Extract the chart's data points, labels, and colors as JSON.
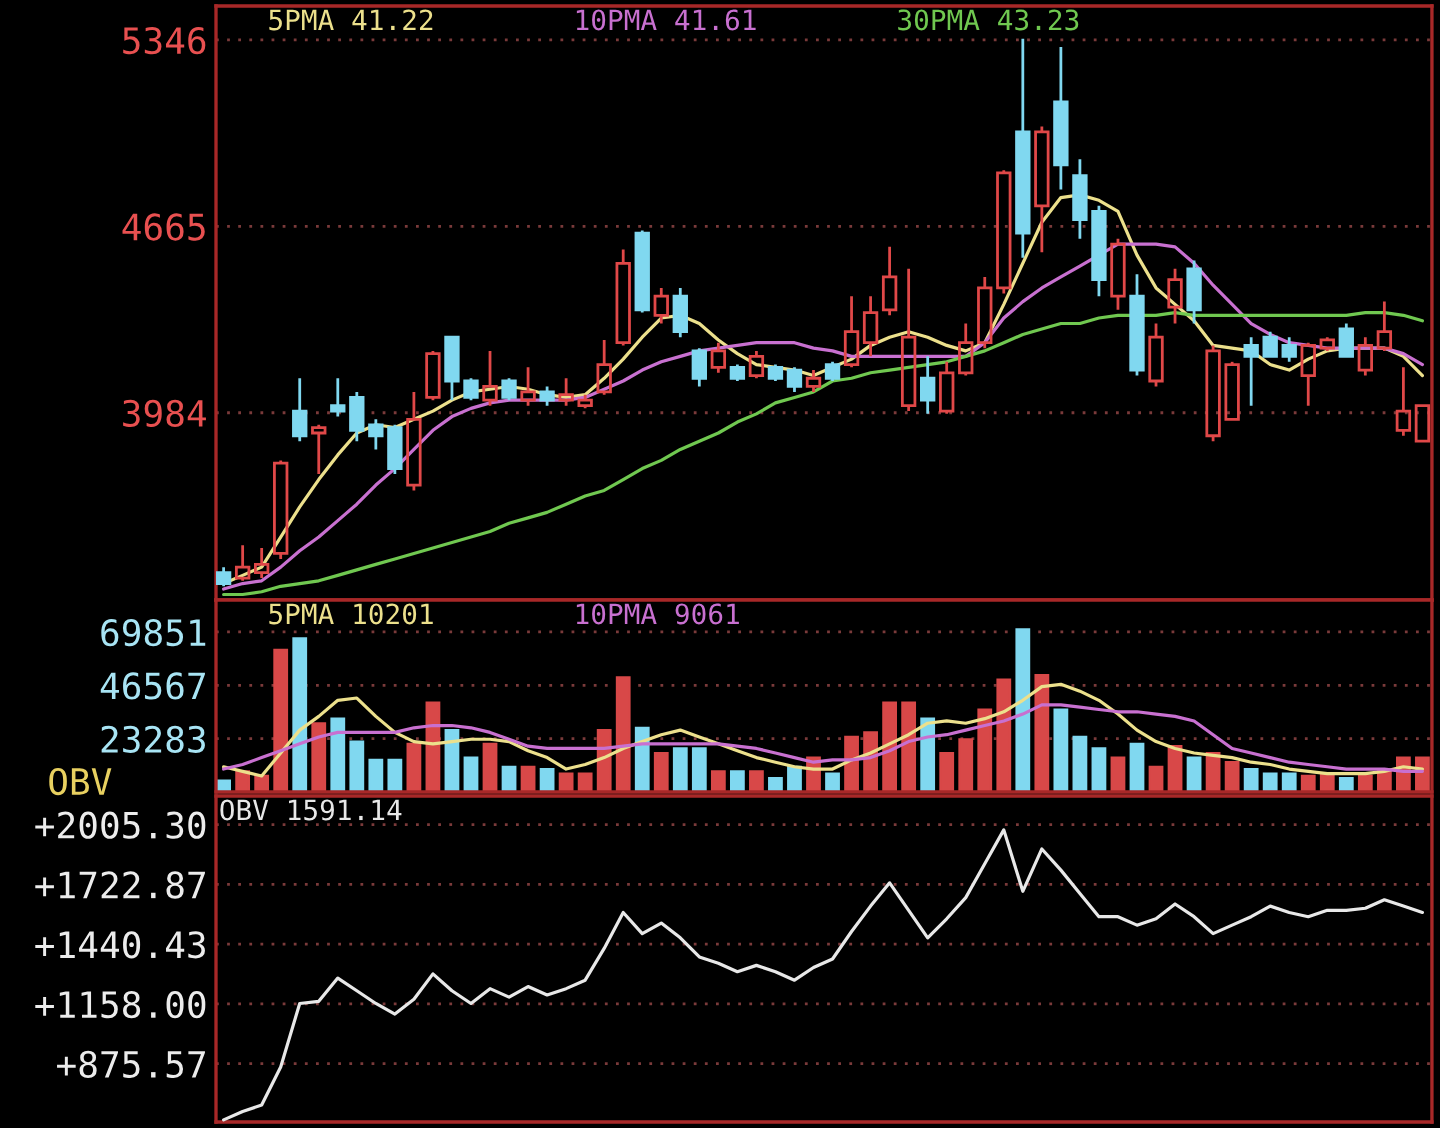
{
  "chart_data": [
    {
      "type": "candlestick",
      "categories": [
        null,
        null,
        null,
        null,
        null,
        null,
        null,
        null,
        null,
        null,
        null,
        null,
        null,
        null,
        null,
        null,
        null,
        null,
        null,
        null,
        null,
        null,
        null,
        null,
        null,
        null,
        null,
        null,
        null,
        null,
        null,
        null,
        null,
        null,
        null,
        null,
        null,
        null,
        null,
        null,
        null,
        null,
        null,
        null,
        null,
        null,
        null,
        null,
        null,
        null,
        null,
        null,
        null,
        null,
        null,
        null,
        null,
        null,
        null,
        null,
        null,
        null,
        null,
        null
      ],
      "ohlc": [
        [
          3400,
          3420,
          3350,
          3360
        ],
        [
          3380,
          3500,
          3370,
          3420
        ],
        [
          3400,
          3490,
          3380,
          3430
        ],
        [
          3470,
          3810,
          3450,
          3800
        ],
        [
          3990,
          4110,
          3880,
          3900
        ],
        [
          3910,
          3940,
          3760,
          3930
        ],
        [
          4010,
          4110,
          3970,
          3990
        ],
        [
          4040,
          4060,
          3880,
          3920
        ],
        [
          3940,
          3960,
          3850,
          3900
        ],
        [
          3930,
          3940,
          3760,
          3780
        ],
        [
          3720,
          4060,
          3700,
          3960
        ],
        [
          4040,
          4210,
          4030,
          4200
        ],
        [
          4260,
          4260,
          4030,
          4100
        ],
        [
          4100,
          4110,
          4030,
          4040
        ],
        [
          4030,
          4210,
          4010,
          4080
        ],
        [
          4100,
          4110,
          4030,
          4040
        ],
        [
          4030,
          4150,
          4010,
          4060
        ],
        [
          4060,
          4080,
          4010,
          4030
        ],
        [
          4030,
          4110,
          4010,
          4050
        ],
        [
          4010,
          4050,
          4000,
          4030
        ],
        [
          4060,
          4250,
          4050,
          4160
        ],
        [
          4240,
          4580,
          4230,
          4530
        ],
        [
          4640,
          4650,
          4350,
          4360
        ],
        [
          4340,
          4440,
          4310,
          4410
        ],
        [
          4410,
          4440,
          4260,
          4280
        ],
        [
          4210,
          4220,
          4080,
          4110
        ],
        [
          4150,
          4240,
          4130,
          4210
        ],
        [
          4150,
          4160,
          4100,
          4110
        ],
        [
          4120,
          4210,
          4110,
          4190
        ],
        [
          4150,
          4160,
          4100,
          4110
        ],
        [
          4140,
          4150,
          4060,
          4080
        ],
        [
          4080,
          4140,
          4060,
          4110
        ],
        [
          4160,
          4170,
          4100,
          4110
        ],
        [
          4160,
          4410,
          4150,
          4280
        ],
        [
          4240,
          4410,
          4190,
          4350
        ],
        [
          4360,
          4590,
          4340,
          4480
        ],
        [
          4010,
          4510,
          3990,
          4260
        ],
        [
          4110,
          4190,
          3980,
          4030
        ],
        [
          3990,
          4170,
          3980,
          4130
        ],
        [
          4130,
          4310,
          4120,
          4240
        ],
        [
          4240,
          4480,
          4220,
          4440
        ],
        [
          4440,
          4870,
          4420,
          4860
        ],
        [
          5010,
          5350,
          4550,
          4640
        ],
        [
          4740,
          5030,
          4570,
          5010
        ],
        [
          5120,
          5320,
          4800,
          4890
        ],
        [
          4850,
          4910,
          4620,
          4690
        ],
        [
          4720,
          4740,
          4410,
          4470
        ],
        [
          4410,
          4620,
          4360,
          4600
        ],
        [
          4410,
          4490,
          4120,
          4140
        ],
        [
          4100,
          4310,
          4080,
          4260
        ],
        [
          4370,
          4510,
          4310,
          4470
        ],
        [
          4510,
          4540,
          4310,
          4360
        ],
        [
          3900,
          4230,
          3880,
          4210
        ],
        [
          3960,
          4170,
          3960,
          4160
        ],
        [
          4230,
          4260,
          4010,
          4190
        ],
        [
          4260,
          4280,
          4190,
          4190
        ],
        [
          4230,
          4260,
          4170,
          4190
        ],
        [
          4120,
          4240,
          4010,
          4230
        ],
        [
          4220,
          4260,
          4210,
          4250
        ],
        [
          4290,
          4310,
          4190,
          4190
        ],
        [
          4140,
          4260,
          4120,
          4230
        ],
        [
          4220,
          4390,
          4210,
          4280
        ],
        [
          3920,
          4150,
          3900,
          3990
        ],
        [
          3880,
          4010,
          3880,
          4010
        ]
      ],
      "colors": [
        "#80d8f0",
        "#e04848",
        "#e04848",
        "#e04848",
        "#80d8f0",
        "#e04848",
        "#80d8f0",
        "#80d8f0",
        "#80d8f0",
        "#80d8f0",
        "#e04848",
        "#e04848",
        "#80d8f0",
        "#80d8f0",
        "#e04848",
        "#80d8f0",
        "#e04848",
        "#80d8f0",
        "#e04848",
        "#e04848",
        "#e04848",
        "#e04848",
        "#80d8f0",
        "#e04848",
        "#80d8f0",
        "#80d8f0",
        "#e04848",
        "#80d8f0",
        "#e04848",
        "#80d8f0",
        "#80d8f0",
        "#e04848",
        "#80d8f0",
        "#e04848",
        "#e04848",
        "#e04848",
        "#e04848",
        "#80d8f0",
        "#e04848",
        "#e04848",
        "#e04848",
        "#e04848",
        "#80d8f0",
        "#e04848",
        "#80d8f0",
        "#80d8f0",
        "#80d8f0",
        "#e04848",
        "#80d8f0",
        "#e04848",
        "#e04848",
        "#80d8f0",
        "#e04848",
        "#e04848",
        "#80d8f0",
        "#80d8f0",
        "#80d8f0",
        "#e04848",
        "#e04848",
        "#80d8f0",
        "#e04848",
        "#e04848",
        "#e04848",
        "#e04848"
      ],
      "series": [
        {
          "type": "line",
          "name": "5PMA 41.22",
          "color": "#ece08c",
          "values": [
            3360,
            3390,
            3420,
            3530,
            3640,
            3740,
            3830,
            3910,
            3940,
            3930,
            3960,
            3990,
            4030,
            4060,
            4070,
            4080,
            4070,
            4050,
            4040,
            4050,
            4110,
            4180,
            4260,
            4330,
            4340,
            4310,
            4250,
            4200,
            4160,
            4150,
            4140,
            4120,
            4150,
            4180,
            4230,
            4260,
            4280,
            4260,
            4230,
            4210,
            4240,
            4380,
            4530,
            4680,
            4770,
            4780,
            4760,
            4720,
            4560,
            4440,
            4380,
            4320,
            4230,
            4220,
            4210,
            4160,
            4140,
            4180,
            4210,
            4220,
            4220,
            4220,
            4190,
            4120
          ]
        },
        {
          "type": "line",
          "name": "10PMA 41.61",
          "color": "#c870d0",
          "values": [
            3340,
            3360,
            3370,
            3420,
            3480,
            3530,
            3590,
            3650,
            3720,
            3780,
            3850,
            3920,
            3970,
            4000,
            4020,
            4030,
            4030,
            4030,
            4030,
            4040,
            4070,
            4100,
            4140,
            4170,
            4190,
            4210,
            4220,
            4230,
            4240,
            4240,
            4240,
            4220,
            4210,
            4190,
            4190,
            4190,
            4190,
            4190,
            4190,
            4190,
            4240,
            4330,
            4390,
            4440,
            4480,
            4520,
            4560,
            4600,
            4600,
            4600,
            4590,
            4530,
            4450,
            4380,
            4310,
            4270,
            4240,
            4230,
            4220,
            4220,
            4220,
            4220,
            4200,
            4160
          ]
        },
        {
          "type": "line",
          "name": "30PMA 43.23",
          "color": "#70c850",
          "values": [
            3320,
            3320,
            3330,
            3350,
            3360,
            3370,
            3390,
            3410,
            3430,
            3450,
            3470,
            3490,
            3510,
            3530,
            3550,
            3580,
            3600,
            3620,
            3650,
            3680,
            3700,
            3740,
            3780,
            3810,
            3850,
            3880,
            3910,
            3950,
            3980,
            4020,
            4040,
            4060,
            4100,
            4110,
            4130,
            4140,
            4150,
            4160,
            4170,
            4190,
            4210,
            4240,
            4270,
            4290,
            4310,
            4310,
            4330,
            4340,
            4340,
            4340,
            4350,
            4340,
            4340,
            4340,
            4340,
            4340,
            4340,
            4340,
            4340,
            4340,
            4350,
            4350,
            4340,
            4320
          ]
        }
      ],
      "ylim": [
        3300,
        5470
      ],
      "yticks": [
        3984,
        4665,
        5346
      ],
      "grid": "y",
      "legend": "top left",
      "tick_labels": "y"
    },
    {
      "type": "bar",
      "categories": [
        null,
        null,
        null,
        null,
        null,
        null,
        null,
        null,
        null,
        null,
        null,
        null,
        null,
        null,
        null,
        null,
        null,
        null,
        null,
        null,
        null,
        null,
        null,
        null,
        null,
        null,
        null,
        null,
        null,
        null,
        null,
        null,
        null,
        null,
        null,
        null,
        null,
        null,
        null,
        null,
        null,
        null,
        null,
        null,
        null,
        null,
        null,
        null,
        null,
        null,
        null,
        null,
        null,
        null,
        null,
        null,
        null,
        null,
        null,
        null,
        null,
        null,
        null,
        null
      ],
      "series": [
        {
          "colors": [
            "#80d8f0",
            "#d84848",
            "#d84848",
            "#d84848",
            "#80d8f0",
            "#d84848",
            "#80d8f0",
            "#80d8f0",
            "#80d8f0",
            "#80d8f0",
            "#d84848",
            "#d84848",
            "#80d8f0",
            "#80d8f0",
            "#d84848",
            "#80d8f0",
            "#d84848",
            "#80d8f0",
            "#d84848",
            "#d84848",
            "#d84848",
            "#d84848",
            "#80d8f0",
            "#d84848",
            "#80d8f0",
            "#80d8f0",
            "#d84848",
            "#80d8f0",
            "#d84848",
            "#80d8f0",
            "#80d8f0",
            "#d84848",
            "#80d8f0",
            "#d84848",
            "#d84848",
            "#d84848",
            "#d84848",
            "#80d8f0",
            "#d84848",
            "#d84848",
            "#d84848",
            "#d84848",
            "#80d8f0",
            "#d84848",
            "#80d8f0",
            "#80d8f0",
            "#80d8f0",
            "#d84848",
            "#80d8f0",
            "#d84848",
            "#d84848",
            "#80d8f0",
            "#d84848",
            "#d84848",
            "#80d8f0",
            "#80d8f0",
            "#80d8f0",
            "#d84848",
            "#d84848",
            "#80d8f0",
            "#d84848",
            "#d84848",
            "#d84848",
            "#d84848"
          ],
          "values": [
            5000,
            9000,
            7000,
            62000,
            67000,
            30000,
            32000,
            22000,
            14000,
            14000,
            21000,
            39000,
            27000,
            15000,
            21000,
            11000,
            11000,
            10000,
            8000,
            8000,
            27000,
            50000,
            28000,
            17000,
            19000,
            19000,
            9000,
            9000,
            9000,
            6000,
            11000,
            15000,
            8000,
            24000,
            26000,
            39000,
            39000,
            32000,
            17000,
            23000,
            36000,
            49000,
            71000,
            51000,
            36000,
            24000,
            19000,
            15000,
            21000,
            11000,
            20000,
            15000,
            17000,
            13000,
            10000,
            8000,
            8000,
            7000,
            8000,
            6000,
            7000,
            9000,
            15000,
            15000
          ]
        },
        {
          "type": "line",
          "name": "5PMA 10201",
          "color": "#ece08c",
          "values": [
            11000,
            9000,
            7000,
            17000,
            27000,
            33000,
            40000,
            41000,
            33000,
            26000,
            22000,
            21000,
            22000,
            23000,
            23000,
            22000,
            18000,
            15000,
            10000,
            12000,
            15000,
            19000,
            22000,
            25000,
            27000,
            24000,
            21000,
            18000,
            15000,
            13000,
            11000,
            10000,
            10000,
            14000,
            17000,
            21000,
            25000,
            30000,
            31000,
            30000,
            32000,
            35000,
            40000,
            46000,
            47000,
            44000,
            40000,
            34000,
            27000,
            22000,
            19000,
            17000,
            16000,
            15000,
            13000,
            12000,
            10000,
            9000,
            8000,
            8000,
            8000,
            9000,
            11000,
            10000
          ]
        },
        {
          "type": "line",
          "name": "10PMA 9061",
          "color": "#c870d0",
          "values": [
            10000,
            12000,
            15000,
            18000,
            21000,
            24000,
            26000,
            26000,
            26000,
            26000,
            28000,
            29000,
            29000,
            28000,
            26000,
            23000,
            20000,
            19000,
            19000,
            19000,
            19000,
            20000,
            21000,
            21000,
            21000,
            21000,
            21000,
            20000,
            19000,
            17000,
            15000,
            13000,
            14000,
            14000,
            15000,
            18000,
            22000,
            24000,
            25000,
            27000,
            29000,
            31000,
            34000,
            38000,
            38000,
            37000,
            36000,
            35000,
            35000,
            34000,
            33000,
            31000,
            25000,
            19000,
            17000,
            15000,
            13000,
            12000,
            11000,
            10000,
            10000,
            10000,
            9000,
            9000
          ]
        }
      ],
      "ylim": [
        0,
        83800
      ],
      "yticks": [
        23283,
        46567,
        69851
      ],
      "grid": "y",
      "legend": "top left",
      "tick_labels": "y"
    },
    {
      "type": "line",
      "categories": [
        null,
        null,
        null,
        null,
        null,
        null,
        null,
        null,
        null,
        null,
        null,
        null,
        null,
        null,
        null,
        null,
        null,
        null,
        null,
        null,
        null,
        null,
        null,
        null,
        null,
        null,
        null,
        null,
        null,
        null,
        null,
        null,
        null,
        null,
        null,
        null,
        null,
        null,
        null,
        null,
        null,
        null,
        null,
        null,
        null,
        null,
        null,
        null,
        null,
        null,
        null,
        null,
        null,
        null,
        null,
        null,
        null,
        null,
        null,
        null,
        null,
        null,
        null,
        null
      ],
      "ylabel": "OBV",
      "series": [
        {
          "name": "OBV 1591.14",
          "color": "#e8e8e8",
          "values": [
            610,
            650,
            680,
            860,
            1160,
            1170,
            1280,
            1220,
            1160,
            1110,
            1180,
            1300,
            1220,
            1160,
            1230,
            1190,
            1240,
            1200,
            1230,
            1270,
            1420,
            1590,
            1490,
            1540,
            1470,
            1380,
            1350,
            1310,
            1340,
            1310,
            1270,
            1330,
            1370,
            1500,
            1620,
            1730,
            1600,
            1470,
            1560,
            1660,
            1820,
            1980,
            1690,
            1890,
            1790,
            1680,
            1570,
            1570,
            1530,
            1560,
            1630,
            1570,
            1490,
            1530,
            1570,
            1620,
            1590,
            1570,
            1600,
            1600,
            1610,
            1650,
            1620,
            1590
          ]
        }
      ],
      "ylim": [
        600,
        2140
      ],
      "yticks": [
        {
          "value": 875.57,
          "label": "+875.57"
        },
        {
          "value": 1158.0,
          "label": "+1158.00"
        },
        {
          "value": 1440.43,
          "label": "+1440.43"
        },
        {
          "value": 1722.87,
          "label": "+1722.87"
        },
        {
          "value": 2005.3,
          "label": "+2005.30"
        }
      ],
      "grid": "y",
      "legend": "top left",
      "tick_labels": "y"
    }
  ]
}
